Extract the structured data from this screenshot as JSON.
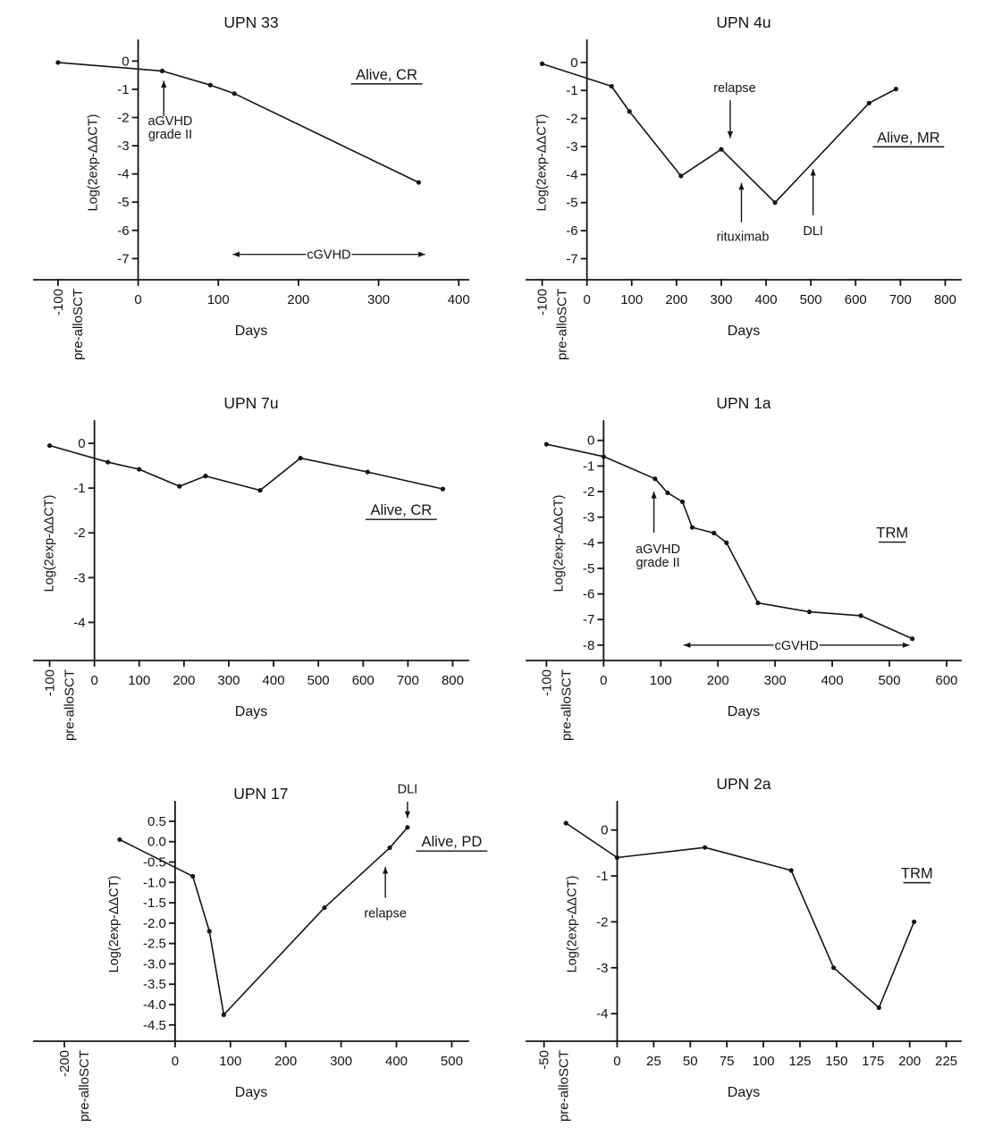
{
  "figure": {
    "background": "#ffffff",
    "ink": "#141414"
  },
  "chart_data": [
    {
      "id": "upn-33",
      "type": "line",
      "title": "UPN 33",
      "outcome": {
        "text": "Alive, CR",
        "x": 310,
        "y": -0.65
      },
      "xlabel": "Days",
      "ylabel": "Log(2exp-ΔΔCT)",
      "pre_axis_label": "pre-alloSCT",
      "xlim": [
        -130,
        412
      ],
      "ylim": [
        -7.75,
        0.55
      ],
      "xticks": [
        -100,
        0,
        100,
        200,
        300,
        400
      ],
      "yticks": [
        0,
        -1,
        -2,
        -3,
        -4,
        -5,
        -6,
        -7
      ],
      "ytick_decimals": 0,
      "grid": false,
      "points": [
        [
          -100,
          -0.05
        ],
        [
          30,
          -0.35
        ],
        [
          90,
          -0.85
        ],
        [
          120,
          -1.15
        ],
        [
          350,
          -4.3
        ]
      ],
      "annotations": [
        {
          "type": "arrow",
          "text": "aGVHD\ngrade II",
          "text_x": 40,
          "text_y": -2.35,
          "arrow_x": 32,
          "arrow_from_y": -1.95,
          "arrow_to_y": -0.7
        },
        {
          "type": "span",
          "text": "cGVHD",
          "x1": 118,
          "x2": 358,
          "y": -6.85
        }
      ]
    },
    {
      "id": "upn-4u",
      "type": "line",
      "title": "UPN 4u",
      "outcome": {
        "text": "Alive, MR",
        "x": 718,
        "y": -2.85
      },
      "xlabel": "Days",
      "ylabel": "Log(2exp-ΔΔCT)",
      "pre_axis_label": "pre-alloSCT",
      "xlim": [
        -135,
        835
      ],
      "ylim": [
        -7.75,
        0.6
      ],
      "xticks": [
        -100,
        0,
        100,
        200,
        300,
        400,
        500,
        600,
        700,
        800
      ],
      "yticks": [
        0,
        -1,
        -2,
        -3,
        -4,
        -5,
        -6,
        -7
      ],
      "ytick_decimals": 0,
      "grid": false,
      "points": [
        [
          -100,
          -0.05
        ],
        [
          55,
          -0.85
        ],
        [
          95,
          -1.75
        ],
        [
          210,
          -4.05
        ],
        [
          300,
          -3.1
        ],
        [
          420,
          -5.0
        ],
        [
          630,
          -1.45
        ],
        [
          690,
          -0.95
        ]
      ],
      "annotations": [
        {
          "type": "arrow",
          "text": "relapse",
          "text_x": 330,
          "text_y": -0.9,
          "arrow_x": 320,
          "arrow_from_y": -1.35,
          "arrow_to_y": -2.7
        },
        {
          "type": "arrow",
          "text": "rituximab",
          "text_x": 348,
          "text_y": -6.2,
          "arrow_x": 345,
          "arrow_from_y": -5.7,
          "arrow_to_y": -4.3
        },
        {
          "type": "arrow",
          "text": "DLI",
          "text_x": 505,
          "text_y": -6.0,
          "arrow_x": 505,
          "arrow_from_y": -5.45,
          "arrow_to_y": -3.8
        }
      ]
    },
    {
      "id": "upn-7u",
      "type": "line",
      "title": "UPN 7u",
      "outcome": {
        "text": "Alive, CR",
        "x": 685,
        "y": -1.6
      },
      "xlabel": "Days",
      "ylabel": "Log(2exp-ΔΔCT)",
      "pre_axis_label": "pre-alloSCT",
      "xlim": [
        -135,
        835
      ],
      "ylim": [
        -4.85,
        0.38
      ],
      "xticks": [
        -100,
        0,
        100,
        200,
        300,
        400,
        500,
        600,
        700,
        800
      ],
      "yticks": [
        0,
        -1,
        -2,
        -3,
        -4
      ],
      "ytick_decimals": 0,
      "grid": false,
      "points": [
        [
          -100,
          -0.05
        ],
        [
          30,
          -0.42
        ],
        [
          100,
          -0.58
        ],
        [
          190,
          -0.96
        ],
        [
          248,
          -0.73
        ],
        [
          370,
          -1.05
        ],
        [
          460,
          -0.33
        ],
        [
          610,
          -0.64
        ],
        [
          778,
          -1.02
        ]
      ],
      "annotations": []
    },
    {
      "id": "upn-1a",
      "type": "line",
      "title": "UPN 1a",
      "outcome": {
        "text": "TRM",
        "x": 505,
        "y": -3.8
      },
      "xlabel": "Days",
      "ylabel": "Log(2exp-ΔΔCT)",
      "pre_axis_label": "pre-alloSCT",
      "xlim": [
        -135,
        625
      ],
      "ylim": [
        -8.6,
        0.55
      ],
      "xticks": [
        -100,
        0,
        100,
        200,
        300,
        400,
        500,
        600
      ],
      "yticks": [
        0,
        -1,
        -2,
        -3,
        -4,
        -5,
        -6,
        -7,
        -8
      ],
      "ytick_decimals": 0,
      "grid": false,
      "points": [
        [
          -100,
          -0.15
        ],
        [
          0,
          -0.63
        ],
        [
          90,
          -1.5
        ],
        [
          112,
          -2.05
        ],
        [
          138,
          -2.4
        ],
        [
          155,
          -3.4
        ],
        [
          193,
          -3.62
        ],
        [
          215,
          -4.0
        ],
        [
          270,
          -6.35
        ],
        [
          360,
          -6.7
        ],
        [
          450,
          -6.85
        ],
        [
          540,
          -7.75
        ]
      ],
      "annotations": [
        {
          "type": "arrow",
          "text": "aGVHD\ngrade II",
          "text_x": 95,
          "text_y": -4.5,
          "arrow_x": 88,
          "arrow_from_y": -3.6,
          "arrow_to_y": -2.0
        },
        {
          "type": "span",
          "text": "cGVHD",
          "x1": 140,
          "x2": 535,
          "y": -8.0
        }
      ]
    },
    {
      "id": "upn-17",
      "type": "line",
      "title": "UPN 17",
      "title_pos": {
        "x": 155,
        "y": 1.05
      },
      "outcome": {
        "text": "Alive, PD",
        "x": 500,
        "y": -0.12
      },
      "xlabel": "Days",
      "ylabel": "Log(2exp-ΔΔCT)",
      "pre_axis_label": "pre-alloSCT",
      "xlim": [
        -255,
        530
      ],
      "ylim": [
        -4.9,
        0.85
      ],
      "xticks": [
        -200,
        0,
        100,
        200,
        300,
        400,
        500
      ],
      "yticks": [
        0.5,
        0,
        -0.5,
        -1,
        -1.5,
        -2,
        -2.5,
        -3,
        -3.5,
        -4,
        -4.5
      ],
      "ytick_decimals": 1,
      "grid": false,
      "points": [
        [
          -100,
          0.05
        ],
        [
          32,
          -0.85
        ],
        [
          62,
          -2.2
        ],
        [
          88,
          -4.25
        ],
        [
          270,
          -1.62
        ],
        [
          388,
          -0.15
        ],
        [
          420,
          0.35
        ]
      ],
      "annotations": [
        {
          "type": "arrow",
          "text": "DLI",
          "text_x": 420,
          "text_y": 1.3,
          "arrow_x": 420,
          "arrow_from_y": 0.98,
          "arrow_to_y": 0.58
        },
        {
          "type": "arrow",
          "text": "relapse",
          "text_x": 380,
          "text_y": -1.75,
          "arrow_x": 380,
          "arrow_from_y": -1.38,
          "arrow_to_y": -0.62
        }
      ]
    },
    {
      "id": "upn-2a",
      "type": "line",
      "title": "UPN 2a",
      "outcome": {
        "text": "TRM",
        "x": 205,
        "y": -1.05
      },
      "xlabel": "Days",
      "ylabel": "Log(2exp-ΔΔCT)",
      "pre_axis_label": "pre-alloSCT",
      "xlim": [
        -62,
        235
      ],
      "ylim": [
        -4.6,
        0.5
      ],
      "xticks": [
        -50,
        0,
        25,
        50,
        75,
        100,
        125,
        150,
        175,
        200,
        225
      ],
      "yticks": [
        0,
        -1,
        -2,
        -3,
        -4
      ],
      "ytick_decimals": 0,
      "grid": false,
      "points": [
        [
          -35,
          0.15
        ],
        [
          0,
          -0.6
        ],
        [
          60,
          -0.38
        ],
        [
          119,
          -0.88
        ],
        [
          148,
          -3.0
        ],
        [
          179,
          -3.87
        ],
        [
          203,
          -2.0
        ]
      ],
      "annotations": []
    }
  ]
}
